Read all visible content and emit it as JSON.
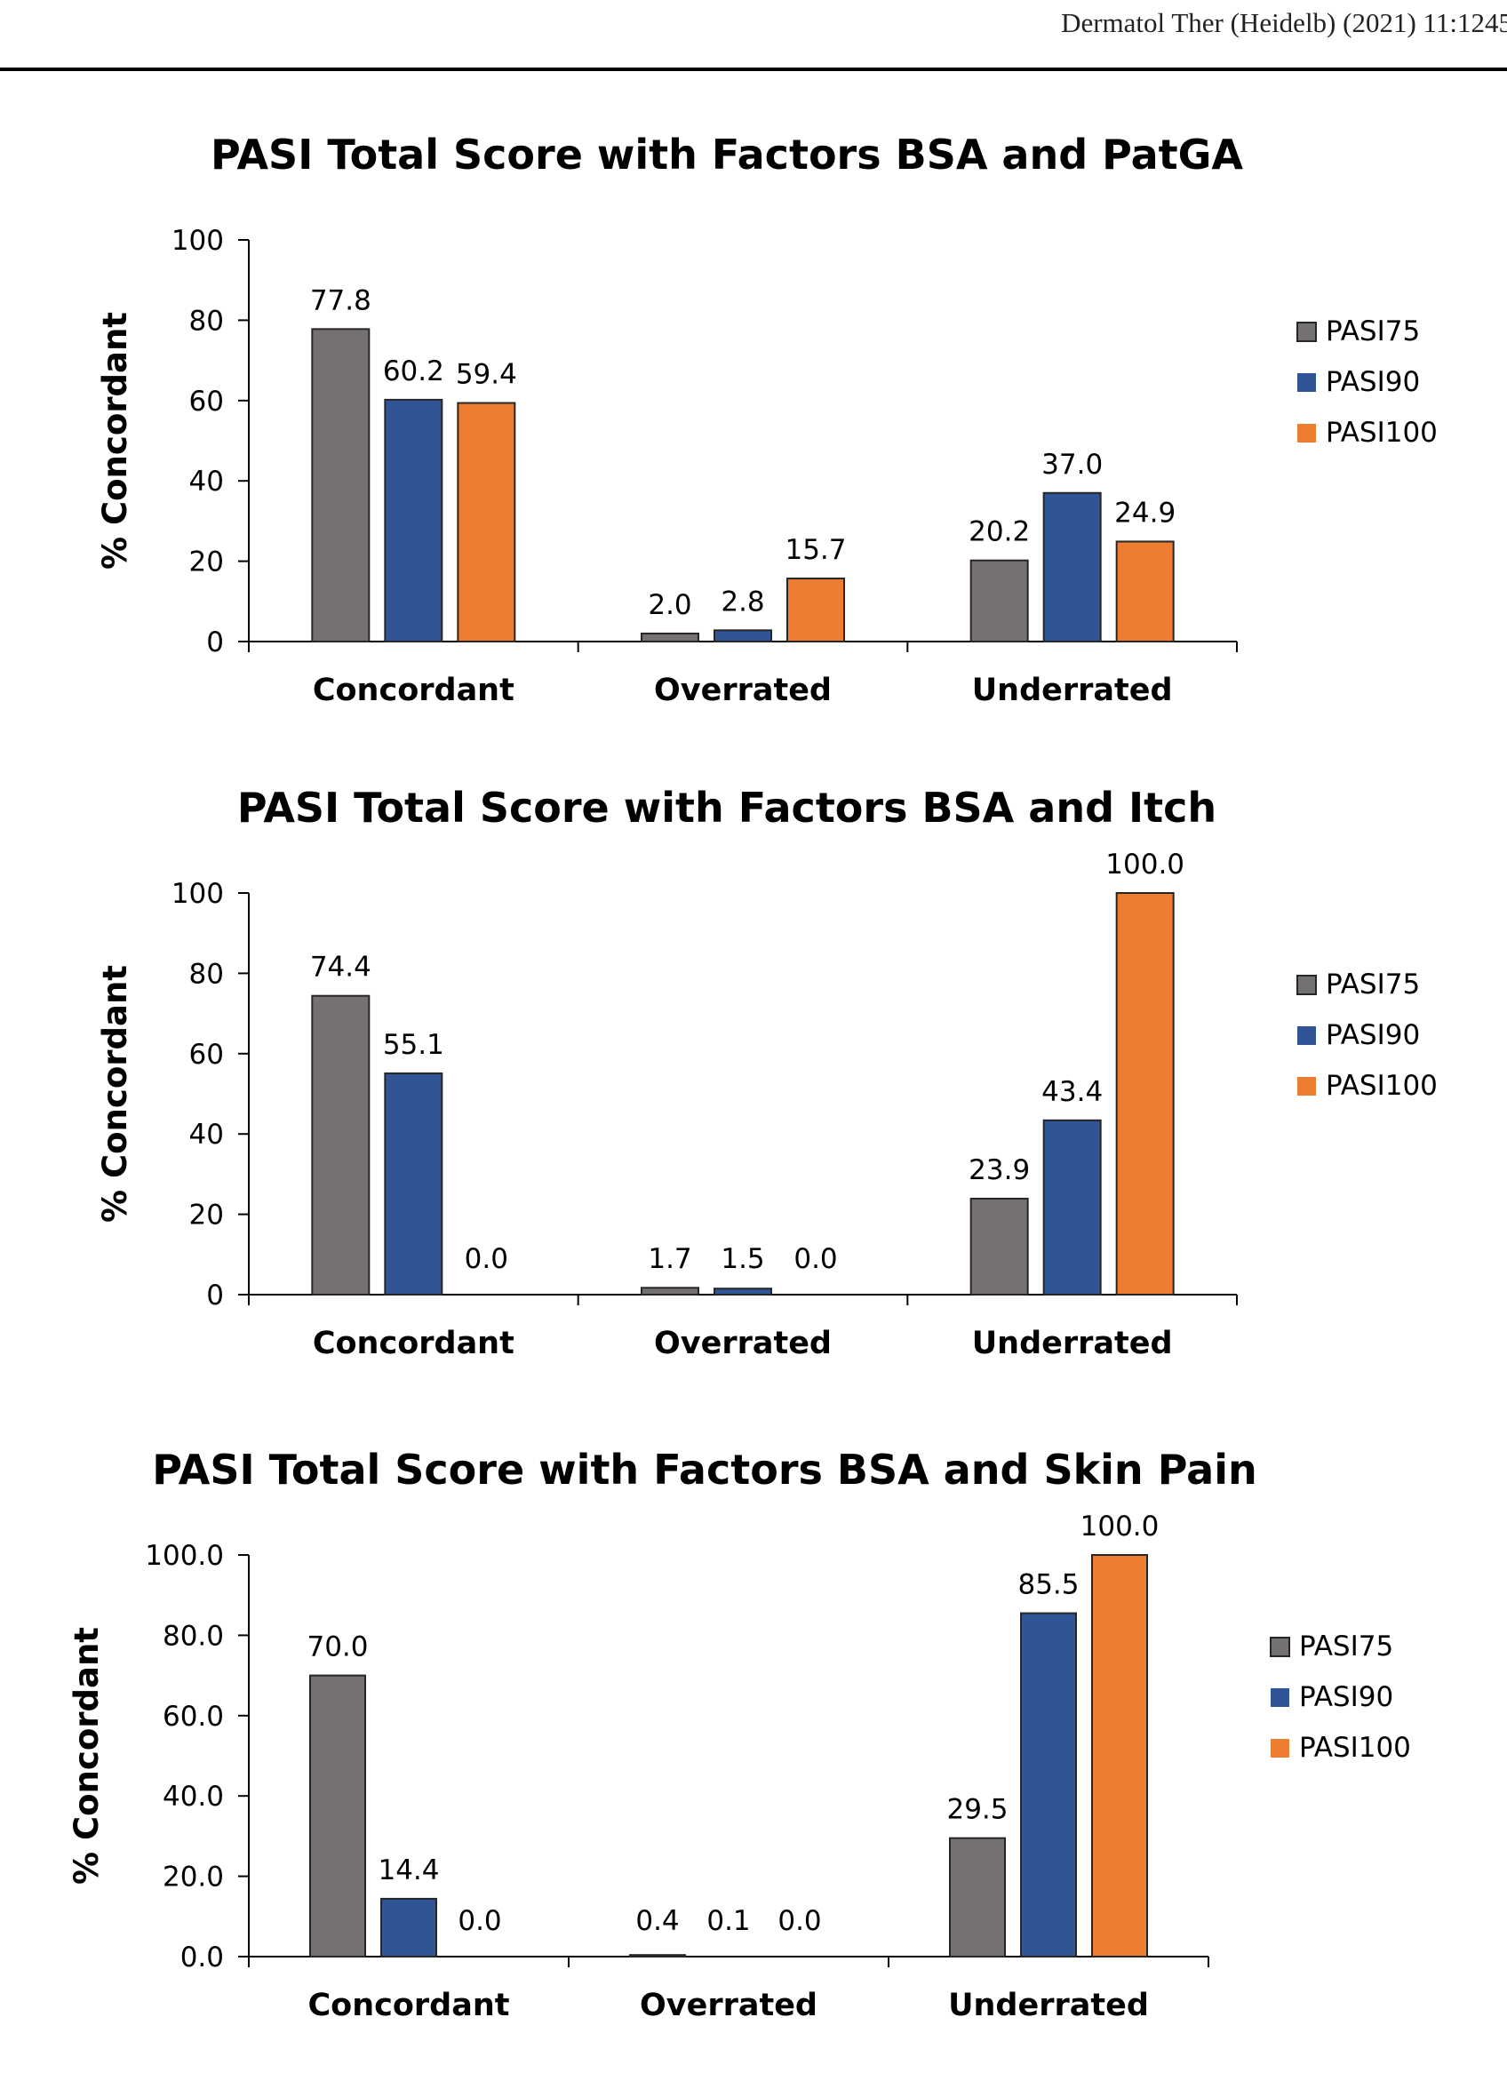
{
  "header": {
    "running_head": "Dermatol Ther (Heidelb) (2021) 11:1245"
  },
  "chart_data": [
    {
      "type": "bar",
      "title": "PASI  Total Score with Factors BSA and PatGA",
      "ylabel": "% Concordant",
      "xlabel": "",
      "categories": [
        "Concordant",
        "Overrated",
        "Underrated"
      ],
      "ylim": [
        0,
        100
      ],
      "yticks": [
        "0",
        "20",
        "40",
        "60",
        "80",
        "100"
      ],
      "series": [
        {
          "name": "PASI75",
          "color": "#767171",
          "values": [
            77.8,
            2.0,
            20.2
          ],
          "labels": [
            "77.8",
            "2.0",
            "20.2"
          ]
        },
        {
          "name": "PASI90",
          "color": "#2f5597",
          "values": [
            60.2,
            2.8,
            37.0
          ],
          "labels": [
            "60.2",
            "2.8",
            "37.0"
          ]
        },
        {
          "name": "PASI100",
          "color": "#ed7d31",
          "values": [
            59.4,
            15.7,
            24.9
          ],
          "labels": [
            "59.4",
            "15.7",
            "24.9"
          ]
        }
      ],
      "legend": "right",
      "grid": false
    },
    {
      "type": "bar",
      "title": "PASI  Total Score with Factors BSA and Itch",
      "ylabel": "% Concordant",
      "xlabel": "",
      "categories": [
        "Concordant",
        "Overrated",
        "Underrated"
      ],
      "ylim": [
        0,
        100
      ],
      "yticks": [
        "0",
        "20",
        "40",
        "60",
        "80",
        "100"
      ],
      "series": [
        {
          "name": "PASI75",
          "color": "#767171",
          "values": [
            74.4,
            1.7,
            23.9
          ],
          "labels": [
            "74.4",
            "1.7",
            "23.9"
          ]
        },
        {
          "name": "PASI90",
          "color": "#2f5597",
          "values": [
            55.1,
            1.5,
            43.4
          ],
          "labels": [
            "55.1",
            "1.5",
            "43.4"
          ]
        },
        {
          "name": "PASI100",
          "color": "#ed7d31",
          "values": [
            0.0,
            0.0,
            100.0
          ],
          "labels": [
            "0.0",
            "0.0",
            "100.0"
          ]
        }
      ],
      "legend": "right",
      "grid": false
    },
    {
      "type": "bar",
      "title": "PASI  Total Score with Factors BSA and Skin Pain",
      "ylabel": "% Concordant",
      "xlabel": "",
      "categories": [
        "Concordant",
        "Overrated",
        "Underrated"
      ],
      "ylim": [
        0,
        100
      ],
      "yticks": [
        "0.0",
        "20.0",
        "40.0",
        "60.0",
        "80.0",
        "100.0"
      ],
      "series": [
        {
          "name": "PASI75",
          "color": "#767171",
          "values": [
            70.0,
            0.4,
            29.5
          ],
          "labels": [
            "70.0",
            "0.4",
            "29.5"
          ]
        },
        {
          "name": "PASI90",
          "color": "#2f5597",
          "values": [
            14.4,
            0.1,
            85.5
          ],
          "labels": [
            "14.4",
            "0.1",
            "85.5"
          ]
        },
        {
          "name": "PASI100",
          "color": "#ed7d31",
          "values": [
            0.0,
            0.0,
            100.0
          ],
          "labels": [
            "0.0",
            "0.0",
            "100.0"
          ]
        }
      ],
      "legend": "right",
      "grid": false
    }
  ]
}
